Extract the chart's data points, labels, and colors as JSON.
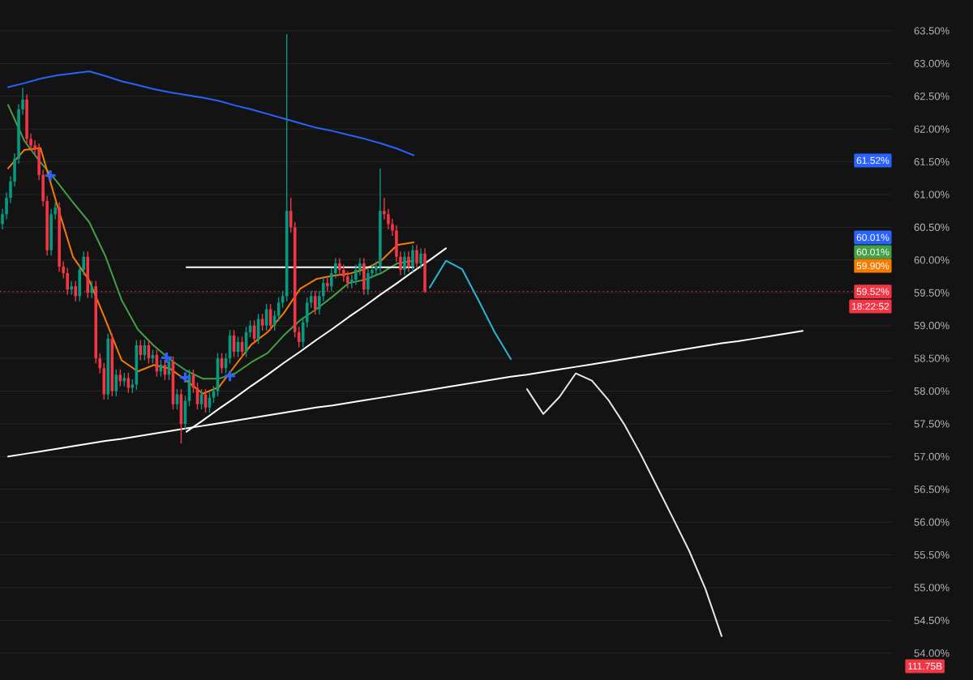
{
  "chart_data": [
    {
      "type": "candlestick",
      "categories": [
        null,
        null,
        null,
        null,
        null,
        null,
        null,
        null,
        null,
        null,
        null,
        null,
        null,
        null,
        null,
        null,
        null,
        null,
        null,
        null,
        null,
        null,
        null,
        null,
        null,
        null,
        null,
        null,
        null,
        null,
        null,
        null,
        null,
        null,
        null,
        null,
        null,
        null,
        null,
        null,
        null,
        null,
        null,
        null,
        null,
        null,
        null,
        null,
        null,
        null,
        null,
        null,
        null,
        null,
        null,
        null,
        null,
        null,
        null,
        null,
        null,
        null,
        null,
        null,
        null,
        null,
        null,
        null,
        null,
        null,
        null,
        null,
        null,
        null,
        null,
        null,
        null,
        null,
        null,
        null,
        null,
        null,
        null,
        null,
        null,
        null,
        null,
        null,
        null,
        null,
        null,
        null,
        null,
        null,
        null,
        null,
        null,
        null,
        null,
        null,
        null,
        null,
        null,
        null,
        null
      ],
      "ohlc": [
        [
          60.55,
          60.78,
          60.47,
          60.7
        ],
        [
          60.7,
          61.03,
          60.62,
          60.95
        ],
        [
          60.95,
          61.28,
          60.87,
          61.2
        ],
        [
          61.2,
          61.63,
          61.12,
          61.55
        ],
        [
          61.55,
          62.38,
          61.47,
          62.3
        ],
        [
          62.3,
          62.63,
          62.22,
          62.45
        ],
        [
          62.45,
          62.53,
          61.77,
          61.85
        ],
        [
          61.85,
          61.93,
          61.67,
          61.75
        ],
        [
          61.75,
          61.83,
          61.62,
          61.7
        ],
        [
          61.7,
          61.78,
          61.22,
          61.3
        ],
        [
          61.3,
          61.38,
          60.82,
          60.9
        ],
        [
          60.9,
          60.98,
          60.07,
          60.15
        ],
        [
          60.15,
          60.78,
          60.07,
          60.7
        ],
        [
          60.7,
          60.88,
          60.62,
          60.8
        ],
        [
          60.8,
          60.88,
          59.82,
          59.9
        ],
        [
          59.9,
          59.98,
          59.72,
          59.8
        ],
        [
          59.8,
          59.88,
          59.47,
          59.55
        ],
        [
          59.55,
          59.68,
          59.47,
          59.6
        ],
        [
          59.6,
          59.68,
          59.37,
          59.45
        ],
        [
          59.45,
          59.93,
          59.37,
          59.85
        ],
        [
          59.85,
          60.13,
          59.77,
          60.05
        ],
        [
          60.05,
          60.13,
          59.42,
          59.5
        ],
        [
          59.5,
          59.68,
          59.42,
          59.6
        ],
        [
          59.6,
          59.68,
          58.42,
          58.5
        ],
        [
          58.5,
          58.58,
          58.27,
          58.35
        ],
        [
          58.35,
          58.43,
          57.87,
          57.95
        ],
        [
          57.95,
          58.88,
          57.87,
          58.8
        ],
        [
          58.8,
          58.88,
          57.92,
          58.0
        ],
        [
          58.0,
          58.33,
          57.92,
          58.25
        ],
        [
          58.25,
          58.33,
          58.07,
          58.15
        ],
        [
          58.15,
          58.28,
          58.07,
          58.2
        ],
        [
          58.2,
          58.28,
          57.97,
          58.05
        ],
        [
          58.05,
          58.18,
          57.97,
          58.1
        ],
        [
          58.1,
          58.78,
          58.02,
          58.7
        ],
        [
          58.7,
          58.78,
          58.47,
          58.55
        ],
        [
          58.55,
          58.78,
          58.47,
          58.7
        ],
        [
          58.7,
          58.78,
          58.42,
          58.5
        ],
        [
          58.5,
          58.63,
          58.42,
          58.55
        ],
        [
          58.55,
          58.63,
          58.22,
          58.3
        ],
        [
          58.3,
          58.48,
          58.22,
          58.4
        ],
        [
          58.4,
          58.48,
          58.17,
          58.25
        ],
        [
          58.25,
          58.53,
          58.17,
          58.45
        ],
        [
          58.45,
          58.53,
          57.72,
          57.8
        ],
        [
          57.8,
          58.03,
          57.72,
          57.95
        ],
        [
          57.95,
          58.03,
          57.2,
          57.5
        ],
        [
          57.5,
          57.93,
          57.42,
          57.85
        ],
        [
          57.85,
          58.33,
          57.77,
          58.25
        ],
        [
          58.25,
          58.33,
          57.97,
          58.05
        ],
        [
          58.05,
          58.13,
          57.72,
          57.8
        ],
        [
          57.8,
          58.03,
          57.72,
          57.95
        ],
        [
          57.95,
          58.03,
          57.67,
          57.75
        ],
        [
          57.75,
          57.98,
          57.67,
          57.9
        ],
        [
          57.9,
          58.08,
          57.82,
          58.0
        ],
        [
          58.0,
          58.58,
          57.92,
          58.5
        ],
        [
          58.5,
          58.58,
          58.27,
          58.35
        ],
        [
          58.35,
          58.58,
          58.27,
          58.5
        ],
        [
          58.5,
          58.93,
          58.42,
          58.85
        ],
        [
          58.85,
          58.93,
          58.52,
          58.6
        ],
        [
          58.6,
          58.83,
          58.52,
          58.75
        ],
        [
          58.75,
          58.83,
          58.52,
          58.6
        ],
        [
          58.6,
          58.98,
          58.52,
          58.9
        ],
        [
          58.9,
          59.08,
          58.82,
          59.0
        ],
        [
          59.0,
          59.08,
          58.72,
          58.8
        ],
        [
          58.8,
          59.18,
          58.72,
          59.1
        ],
        [
          59.1,
          59.18,
          58.92,
          59.0
        ],
        [
          59.0,
          59.33,
          58.92,
          59.25
        ],
        [
          59.25,
          59.33,
          58.92,
          59.0
        ],
        [
          59.0,
          59.23,
          58.92,
          59.15
        ],
        [
          59.15,
          59.43,
          59.07,
          59.35
        ],
        [
          59.35,
          59.53,
          59.27,
          59.45
        ],
        [
          59.45,
          63.45,
          59.37,
          60.75
        ],
        [
          60.75,
          60.95,
          60.42,
          60.5
        ],
        [
          60.5,
          60.58,
          58.82,
          58.9
        ],
        [
          58.9,
          58.98,
          58.67,
          58.75
        ],
        [
          58.75,
          59.13,
          58.67,
          59.05
        ],
        [
          59.05,
          59.43,
          58.97,
          59.35
        ],
        [
          59.35,
          59.53,
          59.27,
          59.45
        ],
        [
          59.45,
          59.53,
          59.17,
          59.25
        ],
        [
          59.25,
          59.53,
          59.17,
          59.45
        ],
        [
          59.45,
          59.73,
          59.37,
          59.65
        ],
        [
          59.65,
          59.73,
          59.52,
          59.6
        ],
        [
          59.6,
          59.88,
          59.52,
          59.8
        ],
        [
          59.8,
          60.03,
          59.72,
          59.95
        ],
        [
          59.95,
          60.03,
          59.77,
          59.85
        ],
        [
          59.85,
          59.93,
          59.67,
          59.75
        ],
        [
          59.75,
          59.83,
          59.57,
          59.65
        ],
        [
          59.65,
          59.78,
          59.57,
          59.7
        ],
        [
          59.7,
          59.93,
          59.62,
          59.85
        ],
        [
          59.85,
          60.03,
          59.77,
          59.95
        ],
        [
          59.95,
          60.03,
          59.47,
          59.55
        ],
        [
          59.55,
          59.88,
          59.47,
          59.8
        ],
        [
          59.8,
          59.93,
          59.72,
          59.85
        ],
        [
          59.85,
          59.98,
          59.77,
          59.9
        ],
        [
          59.9,
          61.4,
          59.82,
          60.75
        ],
        [
          60.75,
          60.95,
          60.62,
          60.7
        ],
        [
          60.7,
          60.78,
          60.47,
          60.55
        ],
        [
          60.55,
          60.63,
          60.37,
          60.45
        ],
        [
          60.45,
          60.53,
          59.97,
          60.05
        ],
        [
          60.05,
          60.13,
          59.77,
          59.85
        ],
        [
          59.85,
          60.13,
          59.77,
          60.05
        ],
        [
          60.05,
          60.13,
          59.82,
          59.9
        ],
        [
          59.9,
          60.23,
          59.82,
          60.15
        ],
        [
          60.15,
          60.23,
          59.87,
          59.95
        ],
        [
          59.95,
          60.18,
          59.87,
          60.1
        ],
        [
          60.1,
          60.18,
          59.5,
          59.52
        ]
      ],
      "ylim": [
        53.59,
        63.97
      ],
      "tick_labels": false
    },
    {
      "type": "line",
      "categories": [
        null,
        null,
        null,
        null,
        null,
        null,
        null,
        null,
        null,
        null,
        null,
        null,
        null,
        null,
        null,
        null,
        null,
        null,
        null,
        null,
        null,
        null,
        null,
        null,
        null,
        null,
        null,
        null,
        null,
        null,
        null,
        null,
        null,
        null,
        null,
        null,
        null,
        null,
        null,
        null,
        null,
        null,
        null,
        null,
        null,
        null,
        null,
        null,
        null,
        null,
        null,
        null,
        null,
        null,
        null
      ],
      "series": [
        {
          "color": "#2962ff",
          "values": [
            62.64,
            62.7,
            62.77,
            62.82,
            62.85,
            62.88,
            62.81,
            62.73,
            62.67,
            62.61,
            62.56,
            62.52,
            62.48,
            62.43,
            62.36,
            62.3,
            62.23,
            62.16,
            62.09,
            62.02,
            61.97,
            61.91,
            61.85,
            61.78,
            61.7,
            61.6,
            null,
            null,
            null,
            null,
            null,
            null,
            null,
            null,
            null,
            null,
            null,
            null,
            null,
            null,
            null,
            null,
            null,
            null,
            null,
            null,
            null,
            null,
            null,
            null,
            null,
            null,
            null,
            null,
            null
          ]
        },
        {
          "color": "#43a047",
          "values": [
            62.37,
            61.82,
            61.49,
            61.2,
            60.88,
            60.58,
            60.06,
            59.39,
            58.94,
            58.69,
            58.48,
            58.31,
            58.19,
            58.19,
            58.27,
            58.44,
            58.58,
            58.85,
            59.08,
            59.25,
            59.44,
            59.65,
            59.7,
            59.8,
            59.95,
            59.99,
            null,
            null,
            null,
            null,
            null,
            null,
            null,
            null,
            null,
            null,
            null,
            null,
            null,
            null,
            null,
            null,
            null,
            null,
            null,
            null,
            null,
            null,
            null,
            null,
            null,
            null,
            null,
            null,
            null
          ]
        },
        {
          "color": "#f57c00",
          "values": [
            61.4,
            61.68,
            61.71,
            60.86,
            60.05,
            59.69,
            59.09,
            58.47,
            58.3,
            58.4,
            58.34,
            58.16,
            57.96,
            58.06,
            58.39,
            58.71,
            58.9,
            59.19,
            59.56,
            59.71,
            59.76,
            59.79,
            59.86,
            59.99,
            60.23,
            60.27,
            null,
            null,
            null,
            null,
            null,
            null,
            null,
            null,
            null,
            null,
            null,
            null,
            null,
            null,
            null,
            null,
            null,
            null,
            null,
            null,
            null,
            null,
            null,
            null,
            null,
            null,
            null,
            null,
            null
          ]
        },
        {
          "color": "#ffffff",
          "values": [
            57.0,
            57.04,
            57.08,
            57.12,
            57.16,
            57.2,
            57.24,
            57.27,
            57.31,
            57.35,
            57.39,
            57.43,
            57.47,
            57.51,
            57.55,
            57.59,
            57.63,
            57.67,
            57.71,
            57.75,
            57.78,
            57.82,
            57.86,
            57.9,
            57.94,
            57.98,
            58.02,
            58.06,
            58.1,
            58.14,
            58.18,
            58.22,
            58.25,
            58.29,
            58.33,
            58.37,
            58.41,
            58.45,
            58.49,
            58.53,
            58.57,
            58.61,
            58.65,
            58.69,
            58.73,
            58.76,
            58.8,
            58.84,
            58.88,
            58.92,
            null,
            null,
            null,
            null,
            null
          ]
        },
        {
          "color": "#ffffff",
          "values": [
            null,
            null,
            null,
            null,
            null,
            null,
            null,
            null,
            null,
            null,
            null,
            57.38,
            57.55,
            57.73,
            57.9,
            58.08,
            58.25,
            58.43,
            58.6,
            58.78,
            58.95,
            59.13,
            59.3,
            59.48,
            59.65,
            59.83,
            60.0,
            60.18,
            null,
            null,
            null,
            null,
            null,
            null,
            null,
            null,
            null,
            null,
            null,
            null,
            null,
            null,
            null,
            null,
            null,
            null,
            null,
            null,
            null,
            null,
            null,
            null,
            null,
            null,
            null
          ]
        },
        {
          "color": "#ffffff",
          "values": [
            null,
            null,
            null,
            null,
            null,
            null,
            null,
            null,
            null,
            null,
            null,
            59.89,
            59.89,
            59.89,
            59.89,
            59.89,
            59.89,
            59.89,
            59.89,
            59.89,
            59.89,
            59.89,
            59.89,
            59.89,
            59.89,
            59.89,
            null,
            null,
            null,
            null,
            null,
            null,
            null,
            null,
            null,
            null,
            null,
            null,
            null,
            null,
            null,
            null,
            null,
            null,
            null,
            null,
            null,
            null,
            null,
            null,
            null,
            null,
            null,
            null,
            null
          ]
        },
        {
          "color": "#29b6d6",
          "values": [
            null,
            null,
            null,
            null,
            null,
            null,
            null,
            null,
            null,
            null,
            null,
            null,
            null,
            null,
            null,
            null,
            null,
            null,
            null,
            null,
            null,
            null,
            null,
            null,
            null,
            null,
            59.58,
            59.99,
            59.86,
            59.39,
            58.9,
            58.49,
            null,
            null,
            null,
            null,
            null,
            null,
            null,
            null,
            null,
            null,
            null,
            null,
            null,
            null,
            null,
            null,
            null,
            null,
            null,
            null,
            null,
            null,
            null
          ]
        },
        {
          "color": "#e8e8e8",
          "values": [
            null,
            null,
            null,
            null,
            null,
            null,
            null,
            null,
            null,
            null,
            null,
            null,
            null,
            null,
            null,
            null,
            null,
            null,
            null,
            null,
            null,
            null,
            null,
            null,
            null,
            null,
            null,
            null,
            null,
            null,
            null,
            null,
            58.03,
            57.65,
            57.91,
            58.27,
            58.16,
            57.87,
            57.49,
            57.04,
            56.55,
            56.06,
            55.56,
            54.98,
            54.26,
            null,
            null,
            null,
            null,
            null,
            null,
            null,
            null,
            null,
            null
          ]
        }
      ],
      "ylim": [
        53.59,
        63.97
      ],
      "yticks": [
        {
          "value": 54,
          "label": "54.00%"
        },
        {
          "value": 54.5,
          "label": "54.50%"
        },
        {
          "value": 55,
          "label": "55.00%"
        },
        {
          "value": 55.5,
          "label": "55.50%"
        },
        {
          "value": 56,
          "label": "56.00%"
        },
        {
          "value": 56.5,
          "label": "56.50%"
        },
        {
          "value": 57,
          "label": "57.00%"
        },
        {
          "value": 57.5,
          "label": "57.50%"
        },
        {
          "value": 58,
          "label": "58.00%"
        },
        {
          "value": 58.5,
          "label": "58.50%"
        },
        {
          "value": 59,
          "label": "59.00%"
        },
        {
          "value": 59.5,
          "label": "59.50%"
        },
        {
          "value": 60,
          "label": "60.00%"
        },
        {
          "value": 60.5,
          "label": "60.50%"
        },
        {
          "value": 61,
          "label": "61.00%"
        },
        {
          "value": 61.5,
          "label": "61.50%"
        },
        {
          "value": 62,
          "label": "62.00%"
        },
        {
          "value": 62.5,
          "label": "62.50%"
        },
        {
          "value": 63,
          "label": "63.00%"
        },
        {
          "value": 63.5,
          "label": "63.50%"
        }
      ],
      "tick_labels": "y",
      "grid": "y",
      "ref_lines": [
        {
          "axis": "y",
          "value": 59.52,
          "label": "59.52%",
          "color": "#f23645",
          "line_style": "dotted"
        }
      ],
      "annotations": [
        "61.52%",
        "60.01%",
        "60.01%",
        "59.90%",
        "18:22:52",
        "111.75B"
      ]
    }
  ]
}
